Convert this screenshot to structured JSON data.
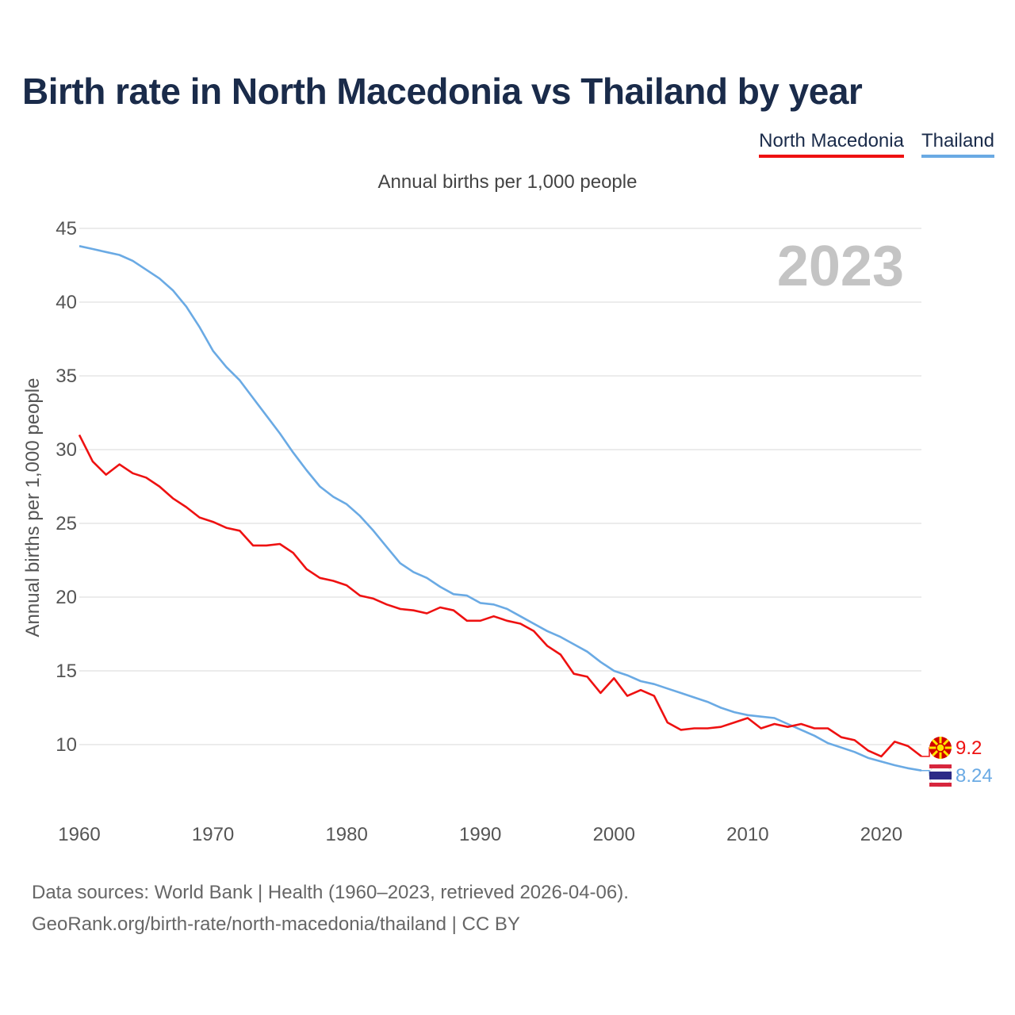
{
  "title": "Birth rate in North Macedonia vs Thailand by year",
  "legend": [
    {
      "label": "North Macedonia",
      "color": "#ee1111"
    },
    {
      "label": "Thailand",
      "color": "#6aaae4"
    }
  ],
  "subtitle": "Annual births per 1,000 people",
  "year_watermark": "2023",
  "footer": {
    "line1": "Data sources: World Bank | Health (1960–2023, retrieved 2026-04-06).",
    "line2": "GeoRank.org/birth-rate/north-macedonia/thailand | CC BY"
  },
  "chart_data": {
    "type": "line",
    "title": "Birth rate in North Macedonia vs Thailand by year",
    "xlabel": "",
    "ylabel": "Annual births per 1,000 people",
    "xlim": [
      1960,
      2023
    ],
    "ylim": [
      5,
      45
    ],
    "yticks": [
      10,
      15,
      20,
      25,
      30,
      35,
      40,
      45
    ],
    "xticks": [
      1960,
      1970,
      1980,
      1990,
      2000,
      2010,
      2020
    ],
    "grid": true,
    "legend_position": "top-right",
    "x": [
      1960,
      1961,
      1962,
      1963,
      1964,
      1965,
      1966,
      1967,
      1968,
      1969,
      1970,
      1971,
      1972,
      1973,
      1974,
      1975,
      1976,
      1977,
      1978,
      1979,
      1980,
      1981,
      1982,
      1983,
      1984,
      1985,
      1986,
      1987,
      1988,
      1989,
      1990,
      1991,
      1992,
      1993,
      1994,
      1995,
      1996,
      1997,
      1998,
      1999,
      2000,
      2001,
      2002,
      2003,
      2004,
      2005,
      2006,
      2007,
      2008,
      2009,
      2010,
      2011,
      2012,
      2013,
      2014,
      2015,
      2016,
      2017,
      2018,
      2019,
      2020,
      2021,
      2022,
      2023
    ],
    "series": [
      {
        "name": "North Macedonia",
        "color": "#ee1111",
        "end_label": "9.2",
        "values": [
          31.0,
          29.2,
          28.3,
          29.0,
          28.4,
          28.1,
          27.5,
          26.7,
          26.1,
          25.4,
          25.1,
          24.7,
          24.5,
          23.5,
          23.5,
          23.6,
          23.0,
          21.9,
          21.3,
          21.1,
          20.8,
          20.1,
          19.9,
          19.5,
          19.2,
          19.1,
          18.9,
          19.3,
          19.1,
          18.4,
          18.4,
          18.7,
          18.4,
          18.2,
          17.7,
          16.7,
          16.1,
          14.8,
          14.6,
          13.5,
          14.5,
          13.3,
          13.7,
          13.3,
          11.5,
          11.0,
          11.1,
          11.1,
          11.2,
          11.5,
          11.8,
          11.1,
          11.4,
          11.2,
          11.4,
          11.1,
          11.1,
          10.5,
          10.3,
          9.6,
          9.2,
          10.2,
          9.9,
          9.2
        ]
      },
      {
        "name": "Thailand",
        "color": "#6aaae4",
        "end_label": "8.24",
        "values": [
          43.8,
          43.6,
          43.4,
          43.2,
          42.8,
          42.2,
          41.6,
          40.8,
          39.7,
          38.3,
          36.7,
          35.6,
          34.7,
          33.5,
          32.3,
          31.1,
          29.8,
          28.6,
          27.5,
          26.8,
          26.3,
          25.5,
          24.5,
          23.4,
          22.3,
          21.7,
          21.3,
          20.7,
          20.2,
          20.1,
          19.6,
          19.5,
          19.2,
          18.7,
          18.2,
          17.7,
          17.3,
          16.8,
          16.3,
          15.6,
          15.0,
          14.7,
          14.3,
          14.1,
          13.8,
          13.5,
          13.2,
          12.9,
          12.5,
          12.2,
          12.0,
          11.9,
          11.8,
          11.4,
          11.0,
          10.6,
          10.1,
          9.8,
          9.5,
          9.1,
          8.85,
          8.6,
          8.4,
          8.24
        ]
      }
    ]
  }
}
